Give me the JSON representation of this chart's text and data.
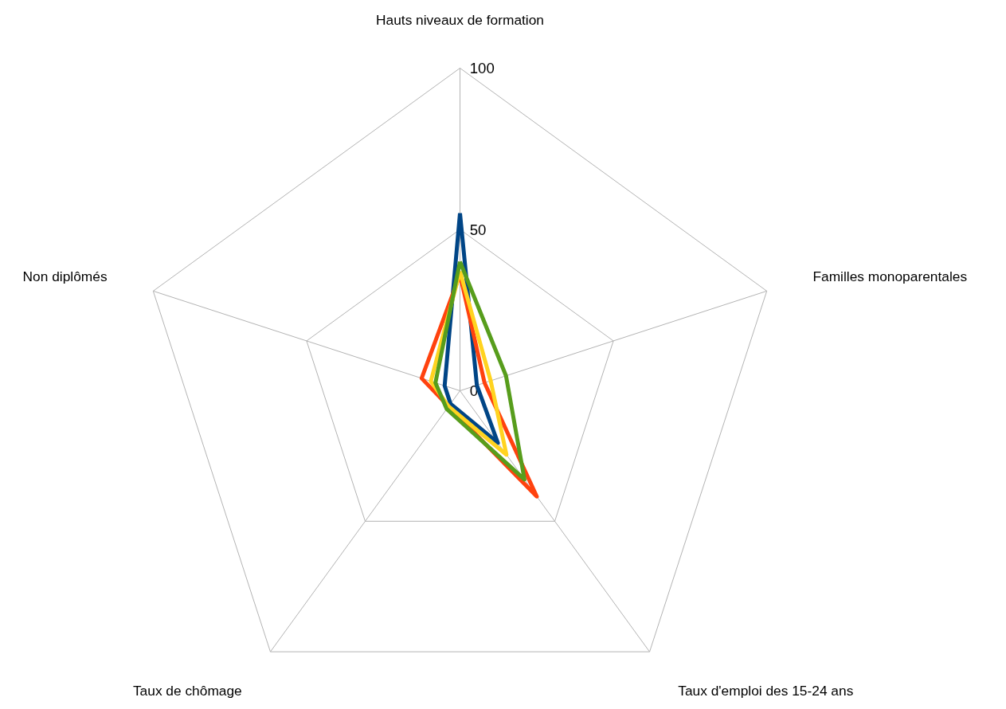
{
  "chart_data": {
    "type": "radar",
    "categories": [
      "Hauts niveaux de formation",
      "Familles monoparentales",
      "Taux d'emploi des 15-24 ans",
      "Taux de chômage",
      "Non diplômés"
    ],
    "series": [
      {
        "color": "#004586",
        "values": [
          55,
          5.5,
          20,
          5,
          5
        ]
      },
      {
        "color": "#ff420e",
        "values": [
          36,
          8,
          40.5,
          6,
          12.5
        ]
      },
      {
        "color": "#ffd320",
        "values": [
          37,
          10,
          24.5,
          6,
          9.5
        ]
      },
      {
        "color": "#579d1c",
        "values": [
          40,
          15,
          34,
          7,
          8
        ]
      }
    ],
    "ylim": [
      0,
      100
    ],
    "yticks": [
      0,
      50,
      100
    ],
    "grid": true
  }
}
